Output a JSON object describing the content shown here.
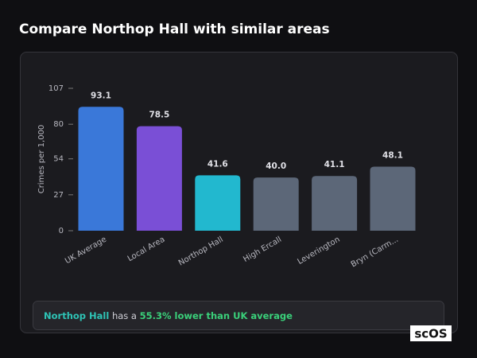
{
  "title": "Compare Northop Hall with similar areas",
  "chart_data": {
    "type": "bar",
    "y_label": "Crimes per 1,000",
    "categories": [
      "UK Average",
      "Local Area",
      "Northop Hall",
      "High Ercall",
      "Leverington",
      "Bryn (Carm..."
    ],
    "values": [
      93.1,
      78.5,
      41.6,
      40.0,
      41.1,
      48.1
    ],
    "value_labels": [
      "93.1",
      "78.5",
      "41.6",
      "40.0",
      "41.1",
      "48.1"
    ],
    "colors": [
      "#3a78d9",
      "#7a4fd6",
      "#22b8cf",
      "#5c6778",
      "#5c6778",
      "#5c6778"
    ],
    "ylim": [
      0,
      107
    ],
    "yticks": [
      0,
      27,
      54,
      80,
      107
    ]
  },
  "summary": {
    "area": "Northop Hall",
    "text": " has a ",
    "highlight": "55.3% lower than UK average"
  },
  "logo": "scOS"
}
